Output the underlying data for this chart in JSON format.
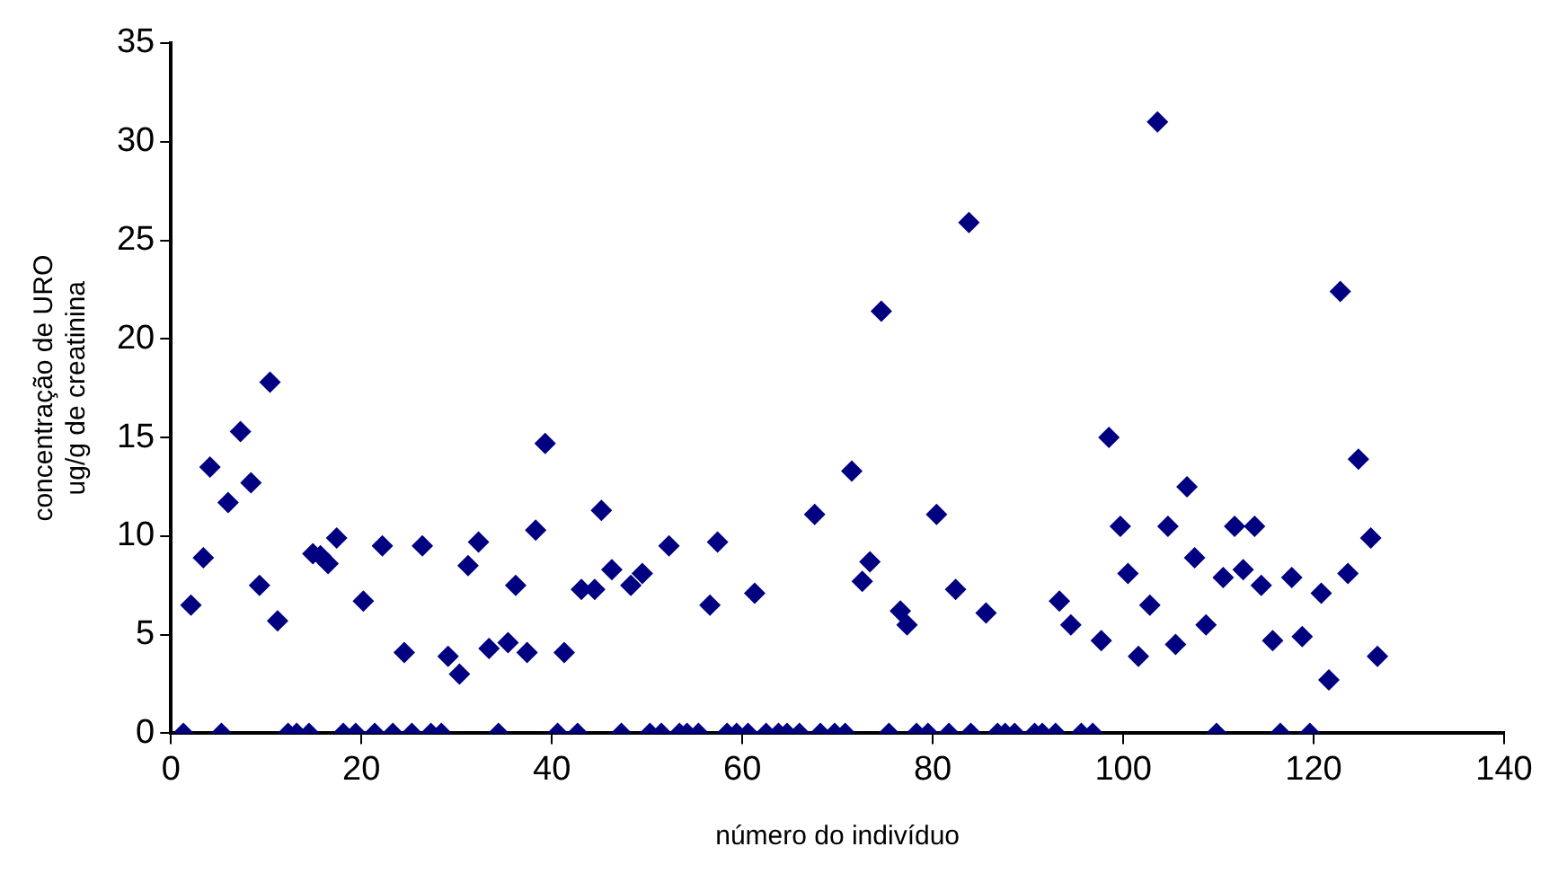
{
  "chart_data": {
    "type": "scatter",
    "xlabel": "número do indivíduo",
    "ylabel": "concentração de URO\nug/g de creatinina",
    "marker": "diamond",
    "grid": false,
    "legend": false,
    "xlim": [
      0,
      140
    ],
    "xticks": [
      0,
      20,
      40,
      60,
      80,
      100,
      120,
      140
    ],
    "ylim": [
      0,
      35
    ],
    "yticks": [
      0,
      5,
      10,
      15,
      20,
      25,
      30,
      35
    ],
    "series": [
      {
        "color": "#000080",
        "x": [
          1.3,
          2.1,
          3.4,
          4.1,
          5.3,
          6.0,
          7.3,
          8.4,
          9.3,
          10.4,
          11.2,
          12.3,
          13.2,
          14.5,
          14.9,
          15.7,
          16.5,
          17.4,
          18.1,
          19.4,
          20.2,
          21.4,
          22.2,
          23.3,
          24.5,
          25.3,
          26.4,
          27.3,
          28.4,
          29.1,
          30.3,
          31.2,
          32.3,
          33.4,
          34.4,
          35.4,
          36.2,
          37.4,
          38.3,
          39.3,
          40.6,
          41.3,
          42.7,
          43.1,
          44.5,
          45.2,
          46.3,
          47.3,
          48.3,
          49.5,
          50.3,
          51.5,
          52.3,
          53.4,
          54.2,
          55.4,
          56.6,
          57.4,
          58.4,
          59.4,
          60.6,
          61.3,
          62.5,
          63.8,
          64.7,
          66.0,
          67.6,
          68.2,
          69.7,
          70.8,
          71.5,
          72.6,
          73.4,
          74.6,
          75.4,
          76.6,
          77.3,
          78.3,
          79.5,
          80.4,
          81.7,
          82.4,
          83.8,
          84.0,
          85.6,
          86.8,
          87.6,
          88.6,
          90.7,
          91.5,
          92.9,
          93.3,
          94.5,
          95.6,
          96.8,
          97.7,
          98.5,
          99.7,
          100.5,
          101.6,
          102.8,
          103.6,
          104.7,
          105.5,
          106.7,
          107.5,
          108.7,
          109.8,
          110.5,
          111.7,
          112.6,
          113.8,
          114.5,
          115.7,
          116.5,
          117.7,
          118.8,
          119.6,
          120.8,
          121.6,
          122.8,
          123.6,
          124.7,
          126.0,
          126.7
        ],
        "values": [
          0,
          6.5,
          8.9,
          13.5,
          0,
          11.7,
          15.3,
          12.7,
          7.5,
          17.8,
          5.7,
          0,
          0,
          0,
          9.1,
          9.0,
          8.6,
          9.9,
          0,
          0,
          6.7,
          0,
          9.5,
          0,
          4.1,
          0,
          9.5,
          0,
          0,
          3.9,
          3.0,
          8.5,
          9.7,
          4.3,
          0,
          4.6,
          7.5,
          4.1,
          10.3,
          14.7,
          0,
          4.1,
          0,
          7.3,
          7.3,
          11.3,
          8.3,
          0,
          7.5,
          8.1,
          0,
          0,
          9.5,
          0,
          0,
          0,
          6.5,
          9.7,
          0,
          0,
          0,
          7.1,
          0,
          0,
          0,
          0,
          11.1,
          0,
          0,
          0,
          13.3,
          7.7,
          8.7,
          21.4,
          0,
          6.2,
          5.5,
          0,
          0,
          11.1,
          0,
          7.3,
          25.9,
          0,
          6.1,
          0,
          0,
          0,
          0,
          0,
          0,
          6.7,
          5.5,
          0,
          0,
          4.7,
          15.0,
          10.5,
          8.1,
          3.9,
          6.5,
          31.0,
          10.5,
          4.5,
          12.5,
          8.9,
          5.5,
          0,
          7.9,
          10.5,
          8.3,
          10.5,
          7.5,
          4.7,
          0,
          7.9,
          4.9,
          0,
          7.1,
          2.7,
          22.4,
          8.1,
          13.9,
          9.9,
          3.9
        ]
      }
    ]
  }
}
